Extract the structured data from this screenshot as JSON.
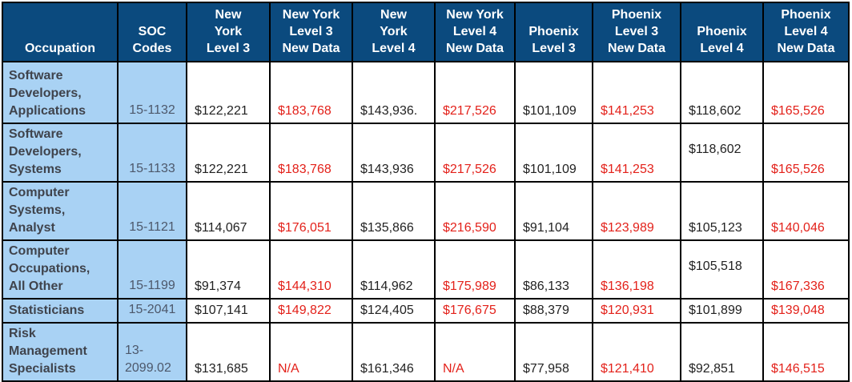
{
  "colors": {
    "header_bg": "#0b4a7e",
    "header_text": "#ffffff",
    "label_column_bg": "#a9d2f4",
    "occupation_text": "#3f434c",
    "soc_text": "#4d586b",
    "value_text": "#222222",
    "new_data_text": "#e3211a",
    "border": "#000000"
  },
  "table": {
    "columns": [
      {
        "key": "occupation",
        "label": "Occupation"
      },
      {
        "key": "soc-codes",
        "label": "SOC\nCodes"
      },
      {
        "key": "new-york-level-3",
        "label": "New\nYork\nLevel 3"
      },
      {
        "key": "new-york-level-3-new-data",
        "label": "New York\nLevel 3\nNew Data"
      },
      {
        "key": "new-york-level-4",
        "label": "New\nYork\nLevel 4"
      },
      {
        "key": "new-york-level-4-new-data",
        "label": "New York\nLevel 4\nNew Data"
      },
      {
        "key": "phoenix-level-3",
        "label": "Phoenix\nLevel 3"
      },
      {
        "key": "phoenix-level-3-new-data",
        "label": "Phoenix\nLevel 3\nNew Data"
      },
      {
        "key": "phoenix-level-4",
        "label": "Phoenix\nLevel 4"
      },
      {
        "key": "phoenix-level-4-new-data",
        "label": "Phoenix\nLevel 4\nNew Data"
      }
    ],
    "rows": [
      {
        "occupation": "Software\nDevelopers,\nApplications",
        "soc": "15-1132",
        "cells": [
          {
            "t": "$122,221",
            "red": false
          },
          {
            "t": "$183,768",
            "red": true
          },
          {
            "t": "$143,936.",
            "red": false
          },
          {
            "t": "$217,526",
            "red": true
          },
          {
            "t": "$101,109",
            "red": false
          },
          {
            "t": "$141,253",
            "red": true
          },
          {
            "t": "$118,602",
            "red": false
          },
          {
            "t": "$165,526",
            "red": true
          }
        ]
      },
      {
        "occupation": "Software\nDevelopers,\nSystems",
        "soc": "15-1133",
        "cells": [
          {
            "t": "$122,221",
            "red": false
          },
          {
            "t": "$183,768",
            "red": true
          },
          {
            "t": "$143,936",
            "red": false
          },
          {
            "t": "$217,526",
            "red": true
          },
          {
            "t": "$101,109",
            "red": false
          },
          {
            "t": "$141,253",
            "red": true
          },
          {
            "t": "$118,602",
            "red": false,
            "raised": true
          },
          {
            "t": "$165,526",
            "red": true
          }
        ]
      },
      {
        "occupation": "Computer\nSystems,\nAnalyst",
        "soc": "15-1121",
        "cells": [
          {
            "t": "$114,067",
            "red": false
          },
          {
            "t": "$176,051",
            "red": true
          },
          {
            "t": "$135,866",
            "red": false
          },
          {
            "t": "$216,590",
            "red": true
          },
          {
            "t": "$91,104",
            "red": false
          },
          {
            "t": "$123,989",
            "red": true
          },
          {
            "t": "$105,123",
            "red": false
          },
          {
            "t": "$140,046",
            "red": true
          }
        ]
      },
      {
        "occupation": "Computer\nOccupations,\nAll Other",
        "soc": "15-1199",
        "cells": [
          {
            "t": "$91,374",
            "red": false
          },
          {
            "t": "$144,310",
            "red": true
          },
          {
            "t": "$114,962",
            "red": false
          },
          {
            "t": "$175,989",
            "red": true
          },
          {
            "t": "$86,133",
            "red": false
          },
          {
            "t": "$136,198",
            "red": true
          },
          {
            "t": "$105,518",
            "red": false,
            "raised": true
          },
          {
            "t": "$167,336",
            "red": true
          }
        ]
      },
      {
        "occupation": "Statisticians",
        "soc": "15-2041",
        "cells": [
          {
            "t": "$107,141",
            "red": false
          },
          {
            "t": "$149,822",
            "red": true
          },
          {
            "t": "$124,405",
            "red": false
          },
          {
            "t": "$176,675",
            "red": true
          },
          {
            "t": "$88,379",
            "red": false
          },
          {
            "t": "$120,931",
            "red": true
          },
          {
            "t": "$101,899",
            "red": false
          },
          {
            "t": "$139,048",
            "red": true
          }
        ]
      },
      {
        "occupation": "Risk\nManagement\nSpecialists",
        "soc": "13-\n2099.02",
        "soc_left": true,
        "cells": [
          {
            "t": "$131,685",
            "red": false
          },
          {
            "t": "N/A",
            "red": true
          },
          {
            "t": "$161,346",
            "red": false
          },
          {
            "t": "N/A",
            "red": true
          },
          {
            "t": "$77,958",
            "red": false
          },
          {
            "t": "$121,410",
            "red": true
          },
          {
            "t": "$92,851",
            "red": false
          },
          {
            "t": "$146,515",
            "red": true
          }
        ]
      }
    ]
  }
}
